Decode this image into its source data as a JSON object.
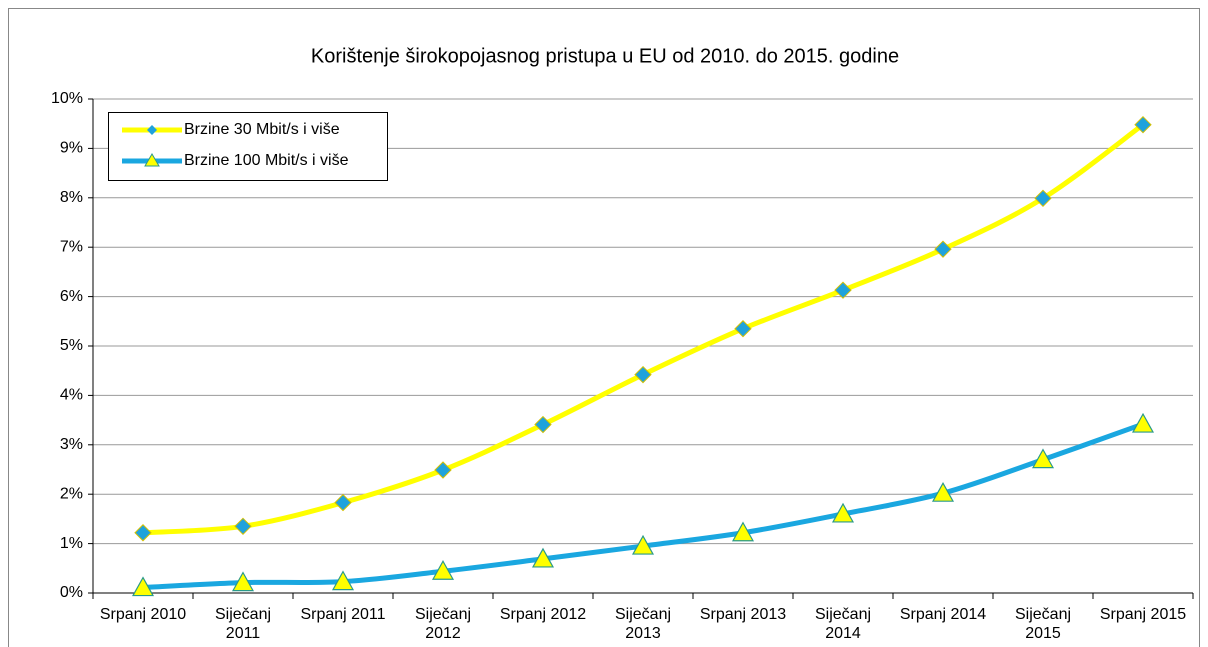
{
  "chart_data": {
    "type": "line",
    "title": "Korištenje širokopojasnog pristupa u EU od 2010. do 2015. godine",
    "categories": [
      "Srpanj 2010",
      "Siječanj 2011",
      "Srpanj 2011",
      "Siječanj 2012",
      "Srpanj 2012",
      "Siječanj 2013",
      "Srpanj 2013",
      "Siječanj 2014",
      "Srpanj 2014",
      "Siječanj 2015",
      "Srpanj 2015"
    ],
    "series": [
      {
        "name": "Brzine 30 Mbit/s i više",
        "color": "#ffff00",
        "marker": "diamond",
        "marker_color": "#1fa2dc",
        "values": [
          1.22,
          1.35,
          1.83,
          2.49,
          3.41,
          4.42,
          5.35,
          6.13,
          6.96,
          7.99,
          9.48
        ]
      },
      {
        "name": "Brzine 100 Mbit/s i više",
        "color": "#1aa7e0",
        "marker": "triangle",
        "marker_color": "#ffff00",
        "values": [
          0.11,
          0.21,
          0.23,
          0.44,
          0.69,
          0.95,
          1.22,
          1.6,
          2.02,
          2.7,
          3.42
        ]
      }
    ],
    "ylim": [
      0,
      10
    ],
    "yticks": [
      {
        "value": 0,
        "label": "0%"
      },
      {
        "value": 1,
        "label": "1%"
      },
      {
        "value": 2,
        "label": "2%"
      },
      {
        "value": 3,
        "label": "3%"
      },
      {
        "value": 4,
        "label": "4%"
      },
      {
        "value": 5,
        "label": "5%"
      },
      {
        "value": 6,
        "label": "6%"
      },
      {
        "value": 7,
        "label": "7%"
      },
      {
        "value": 8,
        "label": "8%"
      },
      {
        "value": 9,
        "label": "9%"
      },
      {
        "value": 10,
        "label": "10%"
      }
    ],
    "grid": true,
    "legend": "upper left"
  }
}
